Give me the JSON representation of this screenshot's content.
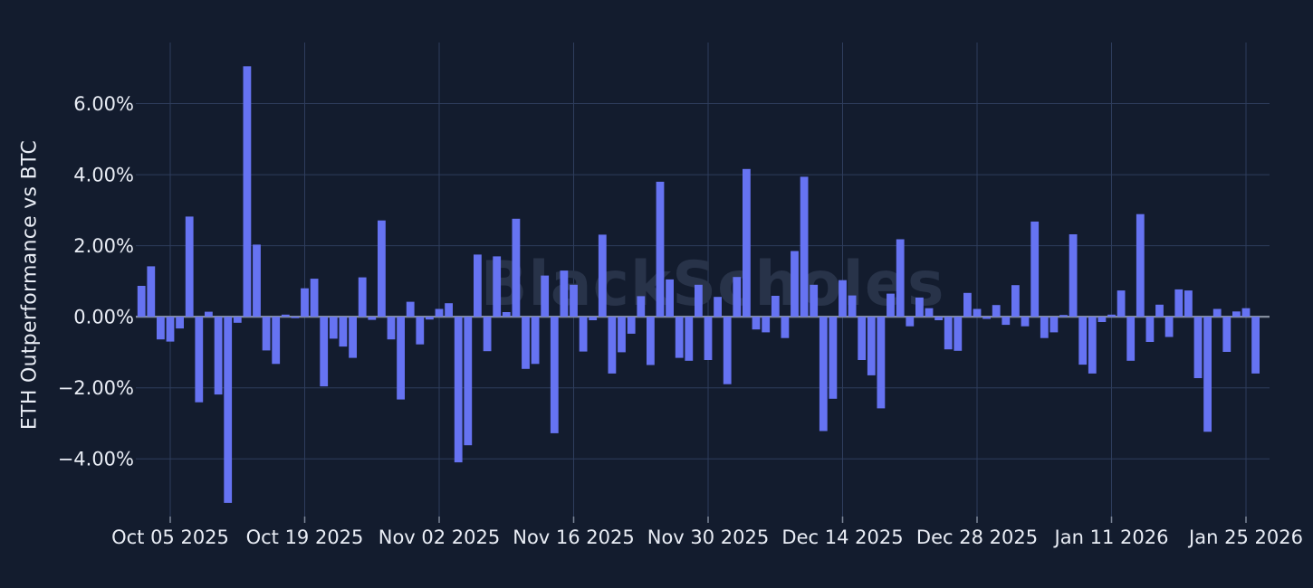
{
  "chart_data": {
    "type": "bar",
    "title": "",
    "xlabel": "",
    "ylabel": "ETH Outperformance vs BTC",
    "watermark": "BlackScholes",
    "grid": true,
    "legend": "none",
    "ylim": [
      -5.65,
      7.72
    ],
    "bar_color": "#6673f2",
    "background_color": "#131c2e",
    "gridline_color": "#2e3d5c",
    "zero_line_color": "#848d9c",
    "tick_label_color": "#e9edf5",
    "y_ticks": [
      6,
      4,
      2,
      0,
      -2,
      -4
    ],
    "y_tick_labels": [
      "6.00%",
      "4.00%",
      "2.00%",
      "0.00%",
      "−2.00%",
      "−4.00%"
    ],
    "x_tick_indices": [
      3,
      17,
      31,
      45,
      59,
      73,
      87,
      101,
      115
    ],
    "x_tick_labels": [
      "Oct 05 2025",
      "Oct 19 2025",
      "Nov 02 2025",
      "Nov 16 2025",
      "Nov 30 2025",
      "Dec 14 2025",
      "Dec 28 2025",
      "Jan 11 2026",
      "Jan 25 2026"
    ],
    "x": [
      "Oct 02 2025",
      "Oct 03 2025",
      "Oct 04 2025",
      "Oct 05 2025",
      "Oct 06 2025",
      "Oct 07 2025",
      "Oct 08 2025",
      "Oct 09 2025",
      "Oct 10 2025",
      "Oct 11 2025",
      "Oct 12 2025",
      "Oct 13 2025",
      "Oct 14 2025",
      "Oct 15 2025",
      "Oct 16 2025",
      "Oct 17 2025",
      "Oct 18 2025",
      "Oct 19 2025",
      "Oct 20 2025",
      "Oct 21 2025",
      "Oct 22 2025",
      "Oct 23 2025",
      "Oct 24 2025",
      "Oct 25 2025",
      "Oct 26 2025",
      "Oct 27 2025",
      "Oct 28 2025",
      "Oct 29 2025",
      "Oct 30 2025",
      "Oct 31 2025",
      "Nov 01 2025",
      "Nov 02 2025",
      "Nov 03 2025",
      "Nov 04 2025",
      "Nov 05 2025",
      "Nov 06 2025",
      "Nov 07 2025",
      "Nov 08 2025",
      "Nov 09 2025",
      "Nov 10 2025",
      "Nov 11 2025",
      "Nov 12 2025",
      "Nov 13 2025",
      "Nov 14 2025",
      "Nov 15 2025",
      "Nov 16 2025",
      "Nov 17 2025",
      "Nov 18 2025",
      "Nov 19 2025",
      "Nov 20 2025",
      "Nov 21 2025",
      "Nov 22 2025",
      "Nov 23 2025",
      "Nov 24 2025",
      "Nov 25 2025",
      "Nov 26 2025",
      "Nov 27 2025",
      "Nov 28 2025",
      "Nov 29 2025",
      "Nov 30 2025",
      "Dec 01 2025",
      "Dec 02 2025",
      "Dec 03 2025",
      "Dec 04 2025",
      "Dec 05 2025",
      "Dec 06 2025",
      "Dec 07 2025",
      "Dec 08 2025",
      "Dec 09 2025",
      "Dec 10 2025",
      "Dec 11 2025",
      "Dec 12 2025",
      "Dec 13 2025",
      "Dec 14 2025",
      "Dec 15 2025",
      "Dec 16 2025",
      "Dec 17 2025",
      "Dec 18 2025",
      "Dec 19 2025",
      "Dec 20 2025",
      "Dec 21 2025",
      "Dec 22 2025",
      "Dec 23 2025",
      "Dec 24 2025",
      "Dec 25 2025",
      "Dec 26 2025",
      "Dec 27 2025",
      "Dec 28 2025",
      "Dec 29 2025",
      "Dec 30 2025",
      "Dec 31 2025",
      "Jan 01 2026",
      "Jan 02 2026",
      "Jan 03 2026",
      "Jan 04 2026",
      "Jan 05 2026",
      "Jan 06 2026",
      "Jan 07 2026",
      "Jan 08 2026",
      "Jan 09 2026",
      "Jan 10 2026",
      "Jan 11 2026",
      "Jan 12 2026",
      "Jan 13 2026",
      "Jan 14 2026",
      "Jan 15 2026",
      "Jan 16 2026",
      "Jan 17 2026",
      "Jan 18 2026",
      "Jan 19 2026",
      "Jan 20 2026",
      "Jan 21 2026",
      "Jan 22 2026",
      "Jan 23 2026",
      "Jan 24 2026",
      "Jan 25 2026",
      "Jan 26 2026"
    ],
    "values": [
      0.87,
      1.42,
      -0.64,
      -0.7,
      -0.33,
      2.82,
      -2.41,
      0.14,
      -2.19,
      -5.24,
      -0.17,
      7.05,
      2.03,
      -0.95,
      -1.33,
      0.06,
      -0.04,
      0.8,
      1.07,
      -1.96,
      -0.62,
      -0.84,
      -1.16,
      1.11,
      -0.09,
      2.71,
      -0.64,
      -2.33,
      0.42,
      -0.78,
      -0.08,
      0.22,
      0.38,
      -4.1,
      -3.62,
      1.75,
      -0.97,
      1.7,
      0.13,
      2.76,
      -1.47,
      -1.33,
      1.16,
      -3.28,
      1.3,
      0.9,
      -0.98,
      -0.1,
      2.31,
      -1.6,
      -1.0,
      -0.48,
      0.58,
      -1.36,
      3.8,
      1.05,
      -1.16,
      -1.24,
      0.9,
      -1.22,
      0.56,
      -1.9,
      1.12,
      4.16,
      -0.36,
      -0.44,
      0.59,
      -0.6,
      1.85,
      3.94,
      0.9,
      -3.22,
      -2.31,
      1.03,
      0.6,
      -1.22,
      -1.65,
      -2.58,
      0.65,
      2.18,
      -0.27,
      0.54,
      0.24,
      -0.1,
      -0.92,
      -0.96,
      0.67,
      0.22,
      -0.06,
      0.33,
      -0.23,
      0.89,
      -0.27,
      2.68,
      -0.6,
      -0.44,
      0.05,
      2.32,
      -1.35,
      -1.6,
      -0.15,
      0.06,
      0.74,
      -1.24,
      2.89,
      -0.71,
      0.34,
      -0.57,
      0.77,
      0.74,
      -1.73,
      -3.24,
      0.22,
      -0.99,
      0.15,
      0.24,
      -1.6
    ]
  }
}
